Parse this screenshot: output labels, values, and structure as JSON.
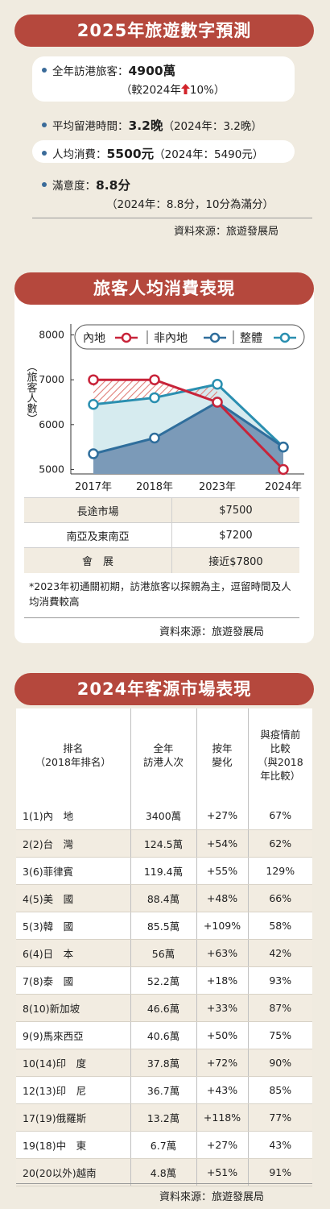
{
  "forecast": {
    "title": "2025年旅遊數字預測",
    "visitors_label": "全年訪港旅客：",
    "visitors_value": "4900萬",
    "visitors_change_prefix": "（較2024年",
    "visitors_change_value": "10%）",
    "stay_label": "平均留港時間：",
    "stay_value": "3.2晚",
    "stay_compare": "（2024年：3.2晚）",
    "spend_label": "人均消費：",
    "spend_value": "5500元",
    "spend_compare": "（2024年：5490元）",
    "satisfaction_label": "滿意度：",
    "satisfaction_value": "8.8分",
    "satisfaction_compare": "（2024年：8.8分，10分為滿分）",
    "source": "資料來源：旅遊發展局",
    "accent_color": "#b5483d",
    "up_arrow_color": "#d2232a"
  },
  "spending": {
    "title": "旅客人均消費表現",
    "source": "資料來源：旅遊發展局",
    "note": "*2023年初通關初期，訪港旅客以探親為主，逗留時間及人均消費較高",
    "table": [
      {
        "label": "長途市場",
        "value": "$7500"
      },
      {
        "label": "南亞及東南亞",
        "value": "$7200"
      },
      {
        "label": "會　展",
        "value": "接近$7800"
      }
    ]
  },
  "chart_data": {
    "type": "line",
    "categories": [
      "2017年",
      "2018年",
      "2023年",
      "2024年"
    ],
    "ylabel": "（旅客人數）",
    "ylim": [
      4900,
      8100
    ],
    "yticks": [
      5000,
      6000,
      7000,
      8000
    ],
    "legend_position": "top",
    "series": [
      {
        "name": "內地",
        "values": [
          7000,
          7000,
          6500,
          5000
        ],
        "color": "#c8243a"
      },
      {
        "name": "非內地",
        "values": [
          5350,
          5700,
          6500,
          5500
        ],
        "color": "#2f6e9c"
      },
      {
        "name": "整體",
        "values": [
          6450,
          6600,
          6900,
          5500
        ],
        "color": "#2a8fb0"
      }
    ]
  },
  "markets": {
    "title": "2024年客源市場表現",
    "headers": [
      "排名\n（2018年排名）",
      "全年\n訪港人次",
      "按年\n變化",
      "與疫情前\n比較\n（與2018\n年比較）"
    ],
    "rows": [
      [
        "1(1)內　地",
        "3400萬",
        "+27%",
        "67%"
      ],
      [
        "2(2)台　灣",
        "124.5萬",
        "+54%",
        "62%"
      ],
      [
        "3(6)菲律賓",
        "119.4萬",
        "+55%",
        "129%"
      ],
      [
        "4(5)美　國",
        "88.4萬",
        "+48%",
        "66%"
      ],
      [
        "5(3)韓　國",
        "85.5萬",
        "+109%",
        "58%"
      ],
      [
        "6(4)日　本",
        "56萬",
        "+63%",
        "42%"
      ],
      [
        "7(8)泰　國",
        "52.2萬",
        "+18%",
        "93%"
      ],
      [
        "8(10)新加坡",
        "46.6萬",
        "+33%",
        "87%"
      ],
      [
        "9(9)馬來西亞",
        "40.6萬",
        "+50%",
        "75%"
      ],
      [
        "10(14)印　度",
        "37.8萬",
        "+72%",
        "90%"
      ],
      [
        "12(13)印　尼",
        "36.7萬",
        "+43%",
        "85%"
      ],
      [
        "17(19)俄羅斯",
        "13.2萬",
        "+118%",
        "77%"
      ],
      [
        "19(18)中　東",
        "6.7萬",
        "+27%",
        "43%"
      ],
      [
        "20(20以外)越南",
        "4.8萬",
        "+51%",
        "91%"
      ]
    ],
    "source": "資料來源：旅遊發展局"
  }
}
